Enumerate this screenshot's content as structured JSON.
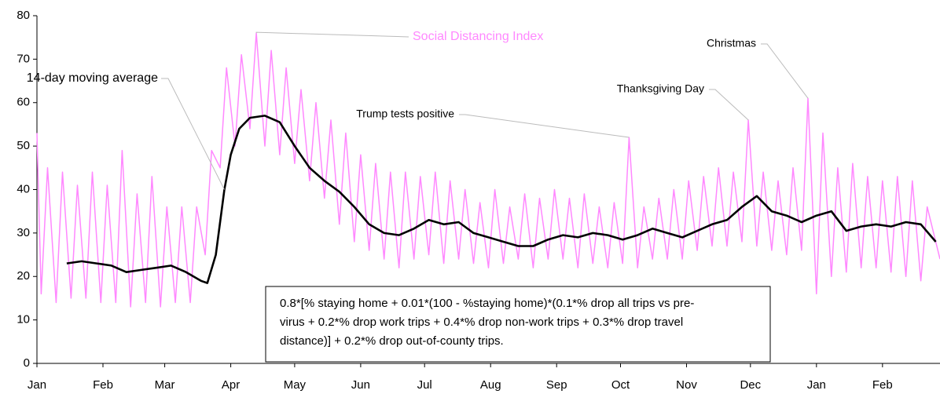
{
  "chart_data": {
    "type": "line",
    "series": [
      {
        "name": "Social Distancing Index",
        "color": "#ff88ff",
        "x": [
          0,
          2,
          5,
          9,
          12,
          16,
          19,
          23,
          26,
          30,
          33,
          37,
          40,
          44,
          47,
          51,
          54,
          58,
          61,
          65,
          68,
          72,
          75,
          79,
          82,
          86,
          89,
          93,
          96,
          100,
          103,
          107,
          110,
          114,
          117,
          121,
          124,
          128,
          131,
          135,
          138,
          142,
          145,
          149,
          152,
          156,
          159,
          163,
          166,
          170,
          173,
          177,
          180,
          184,
          187,
          191,
          194,
          198,
          201,
          205,
          208,
          212,
          215,
          219,
          222,
          226,
          229,
          233,
          236,
          240,
          243,
          247,
          250,
          254,
          257,
          261,
          264,
          268,
          271,
          275,
          278,
          282,
          285,
          289,
          292,
          296,
          299,
          303,
          306,
          310,
          313,
          317,
          320,
          324,
          327,
          331,
          334,
          338,
          341,
          345,
          348,
          352,
          355,
          359,
          362,
          366,
          369,
          373,
          376,
          380,
          383,
          387,
          390,
          394,
          397,
          401,
          404,
          408,
          411,
          415,
          418,
          424
        ],
        "values": [
          53,
          16,
          45,
          14,
          44,
          15,
          41,
          15,
          44,
          14,
          41,
          14,
          49,
          13,
          39,
          14,
          43,
          13,
          36,
          14,
          36,
          14,
          36,
          25,
          49,
          45,
          68,
          50,
          71,
          54,
          76,
          50,
          72,
          48,
          68,
          46,
          63,
          42,
          60,
          38,
          56,
          32,
          53,
          28,
          48,
          26,
          46,
          24,
          44,
          22,
          44,
          24,
          43,
          25,
          44,
          23,
          42,
          24,
          40,
          23,
          37,
          22,
          40,
          23,
          36,
          24,
          39,
          22,
          38,
          24,
          40,
          24,
          38,
          22,
          39,
          23,
          36,
          22,
          37,
          23,
          52,
          22,
          36,
          24,
          38,
          24,
          40,
          24,
          42,
          26,
          43,
          27,
          45,
          27,
          44,
          28,
          56,
          27,
          44,
          26,
          42,
          25,
          45,
          26,
          61,
          16,
          53,
          20,
          45,
          21,
          46,
          22,
          43,
          22,
          42,
          21,
          43,
          20,
          42,
          19,
          36,
          24
        ]
      },
      {
        "name": "14-day moving average",
        "color": "#000000",
        "x": [
          14,
          21,
          28,
          35,
          42,
          49,
          56,
          63,
          70,
          77,
          80,
          84,
          88,
          91,
          95,
          100,
          107,
          114,
          121,
          128,
          135,
          142,
          149,
          156,
          163,
          170,
          177,
          184,
          191,
          198,
          205,
          212,
          219,
          226,
          233,
          240,
          247,
          254,
          261,
          268,
          275,
          282,
          289,
          296,
          303,
          310,
          317,
          324,
          331,
          338,
          345,
          352,
          359,
          366,
          373,
          380,
          387,
          394,
          401,
          408,
          415,
          422
        ],
        "values": [
          23,
          23.5,
          23,
          22.5,
          21,
          21.5,
          22,
          22.5,
          21,
          19,
          18.5,
          25,
          40,
          48,
          54,
          56.5,
          57,
          55.5,
          50,
          45,
          42,
          39.5,
          36,
          32,
          30,
          29.5,
          31,
          33,
          32,
          32.5,
          30,
          29,
          28,
          27,
          27,
          28.5,
          29.5,
          29,
          30,
          29.5,
          28.5,
          29.5,
          31,
          30,
          29,
          30.5,
          32,
          33,
          36,
          38.5,
          35,
          34,
          32.5,
          34,
          35,
          30.5,
          31.5,
          32,
          31.5,
          32.5,
          32,
          28
        ]
      }
    ],
    "xlim": [
      0,
      424
    ],
    "xticks": [
      {
        "value": 0,
        "label": "Jan"
      },
      {
        "value": 31,
        "label": "Feb"
      },
      {
        "value": 60,
        "label": "Mar"
      },
      {
        "value": 91,
        "label": "Apr"
      },
      {
        "value": 121,
        "label": "May"
      },
      {
        "value": 152,
        "label": "Jun"
      },
      {
        "value": 182,
        "label": "Jul"
      },
      {
        "value": 213,
        "label": "Aug"
      },
      {
        "value": 244,
        "label": "Sep"
      },
      {
        "value": 274,
        "label": "Oct"
      },
      {
        "value": 305,
        "label": "Nov"
      },
      {
        "value": 335,
        "label": "Dec"
      },
      {
        "value": 366,
        "label": "Jan"
      },
      {
        "value": 397,
        "label": "Feb"
      }
    ],
    "ylim": [
      0,
      80
    ],
    "yticks": [
      0,
      10,
      20,
      30,
      40,
      50,
      60,
      70,
      80
    ],
    "grid": false,
    "annotations": [
      "Trump tests positive",
      "Thanksgiving Day",
      "Christmas"
    ],
    "note_lines": [
      "0.8*[% staying home + 0.01*(100 - %staying home)*(0.1*% drop all trips vs pre-",
      "virus + 0.2*% drop work trips + 0.4*% drop non-work trips + 0.3*% drop travel",
      "distance)] + 0.2*% drop out-of-county trips."
    ]
  }
}
